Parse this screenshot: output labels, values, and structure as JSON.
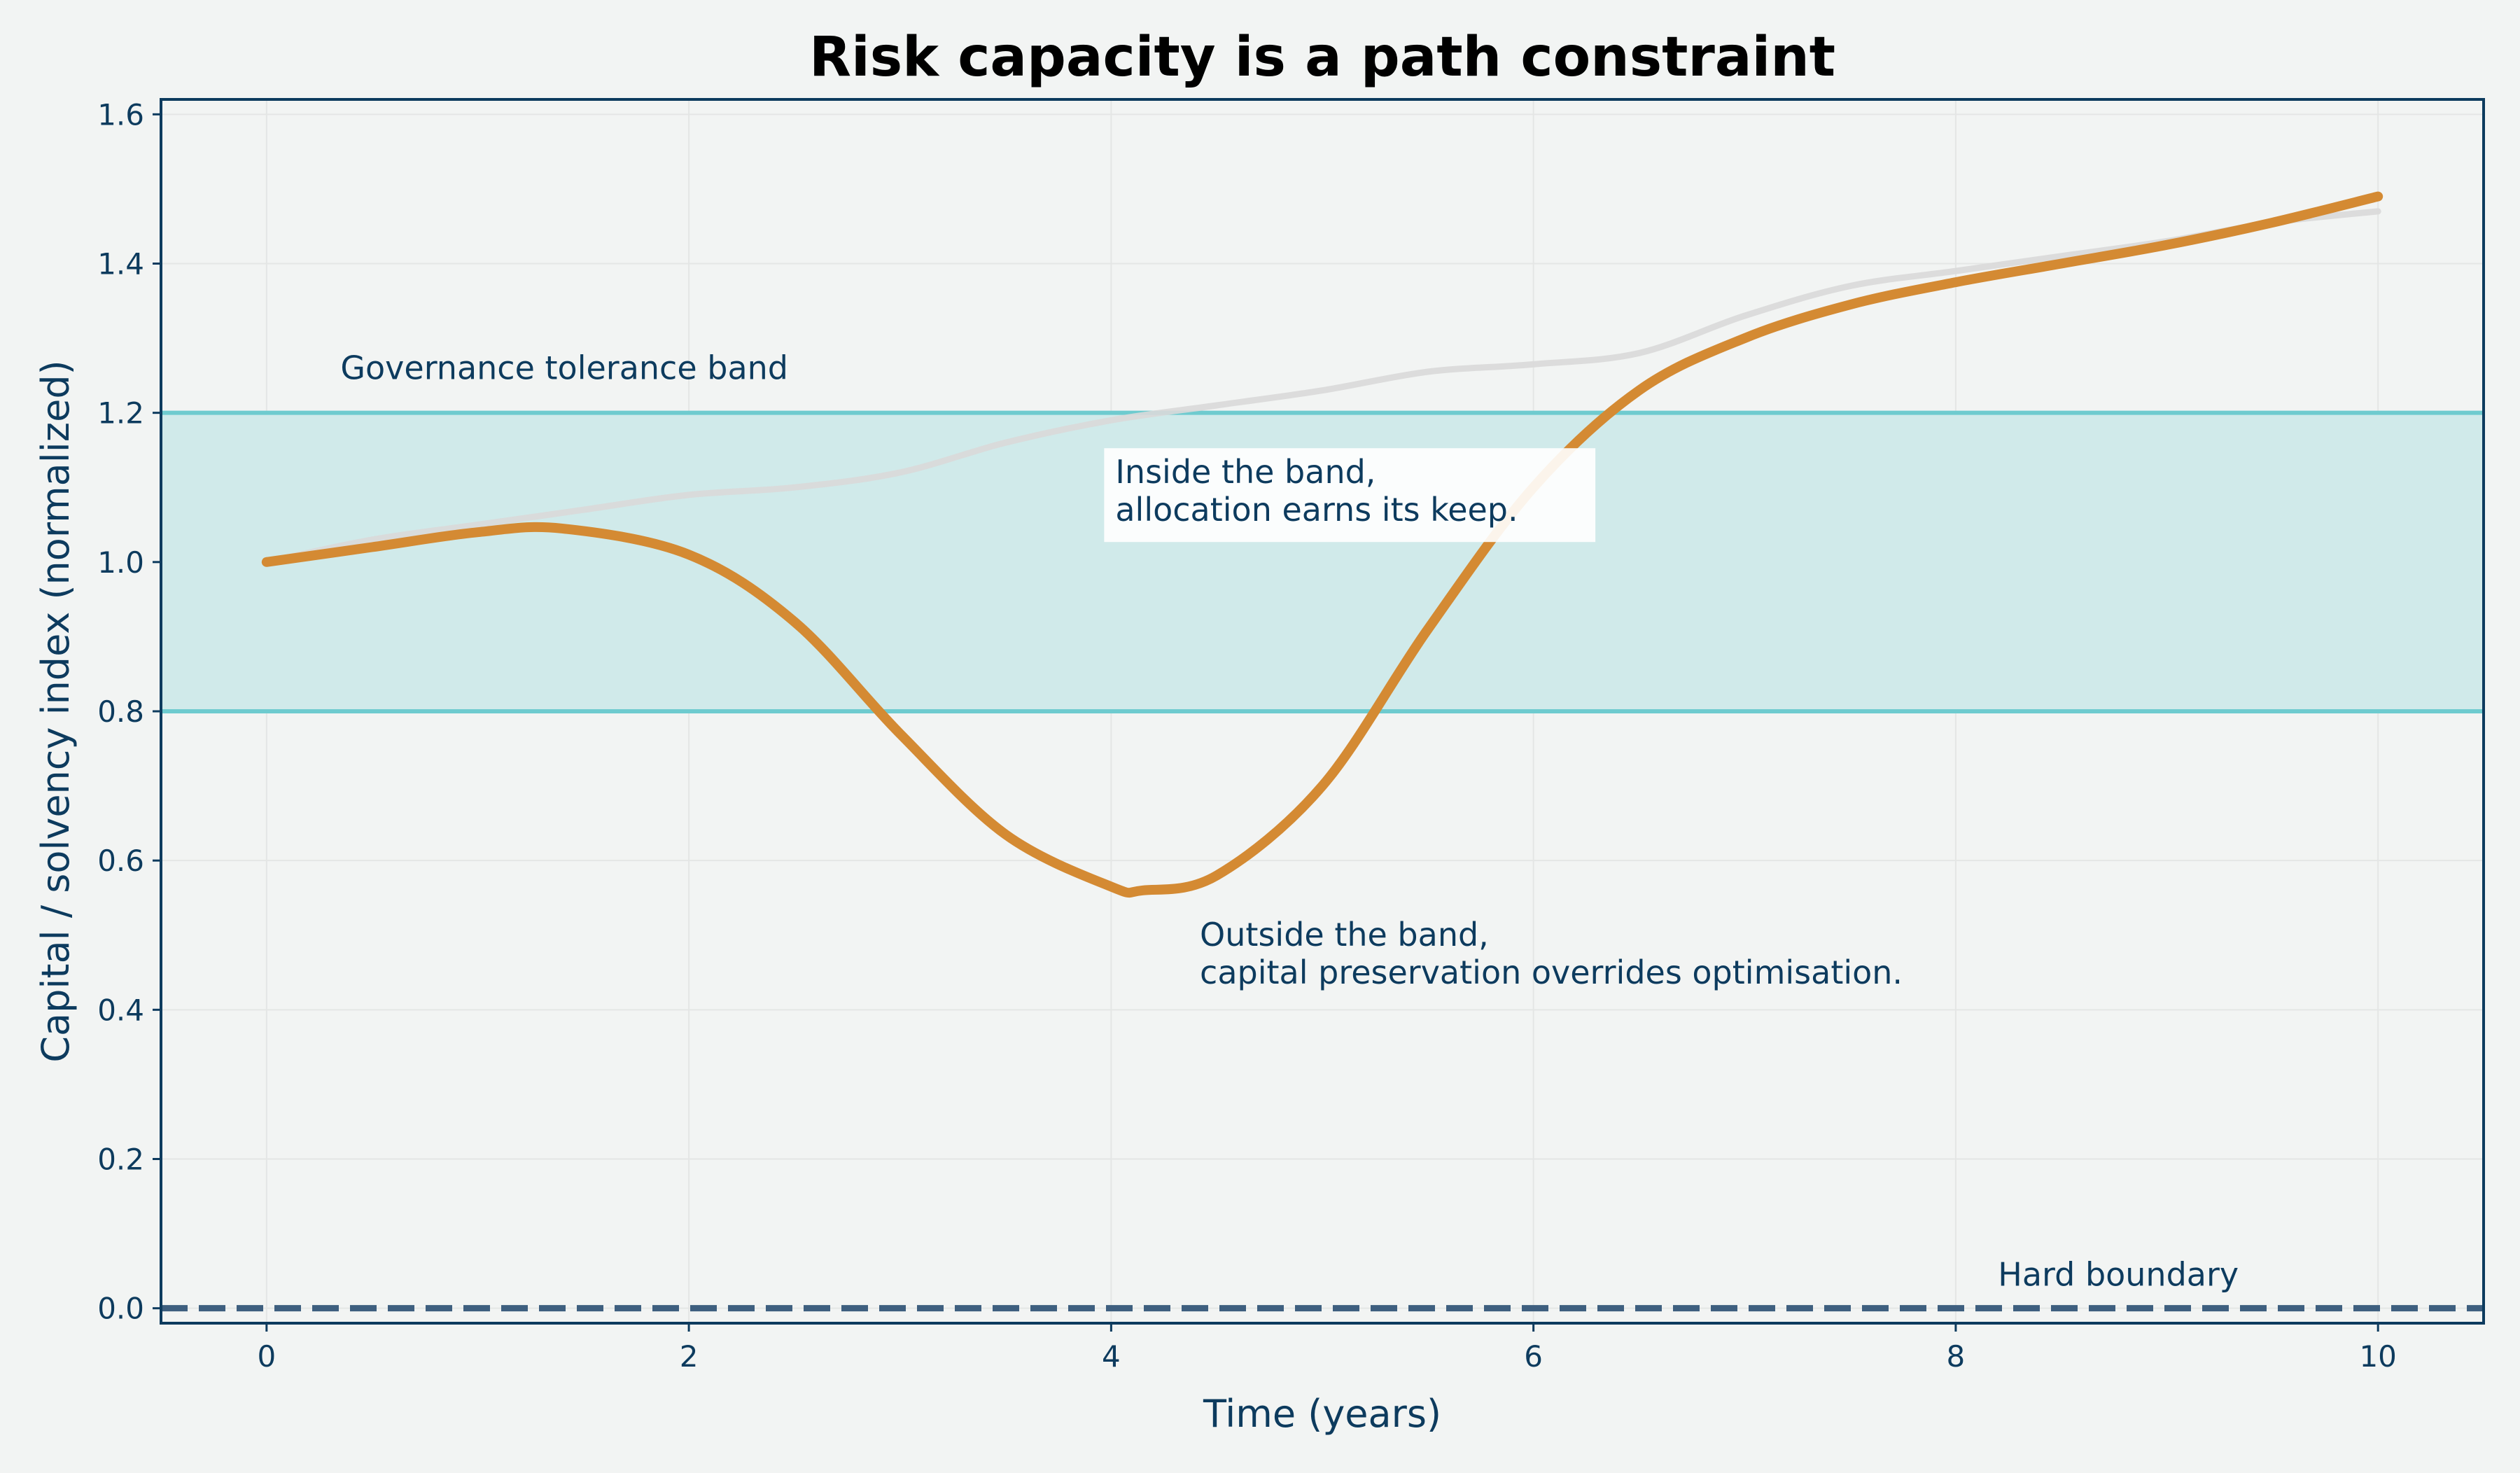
{
  "chart_data": {
    "type": "line",
    "title": "Risk capacity is a path constraint",
    "xlabel": "Time (years)",
    "ylabel": "Capital / solvency index (normalized)",
    "xlim": [
      -0.5,
      10.5
    ],
    "ylim": [
      -0.02,
      1.62
    ],
    "x_ticks": [
      0,
      2,
      4,
      6,
      8,
      10
    ],
    "x_tick_labels": [
      "0",
      "2",
      "4",
      "6",
      "8",
      "10"
    ],
    "y_ticks": [
      0.0,
      0.2,
      0.4,
      0.6,
      0.8,
      1.0,
      1.2,
      1.4,
      1.6
    ],
    "y_tick_labels": [
      "0.0",
      "0.2",
      "0.4",
      "0.6",
      "0.8",
      "1.0",
      "1.2",
      "1.4",
      "1.6"
    ],
    "grid": true,
    "band": {
      "lower": 0.8,
      "upper": 1.2,
      "label": "Governance tolerance band"
    },
    "hard_boundary": {
      "value": 0.0,
      "label": "Hard boundary"
    },
    "series": [
      {
        "role": "reference",
        "color": "#d9d9d9",
        "x": [
          0,
          0.5,
          1,
          1.5,
          2,
          2.5,
          3,
          3.5,
          4,
          4.5,
          5,
          5.5,
          6,
          6.5,
          7,
          7.5,
          8,
          8.5,
          9,
          9.5,
          10
        ],
        "y": [
          1.0,
          1.03,
          1.05,
          1.07,
          1.09,
          1.1,
          1.12,
          1.16,
          1.19,
          1.21,
          1.23,
          1.255,
          1.265,
          1.28,
          1.33,
          1.37,
          1.39,
          1.41,
          1.43,
          1.455,
          1.47
        ]
      },
      {
        "role": "path",
        "color": "#d48a33",
        "x": [
          0,
          0.5,
          1,
          1.4,
          2,
          2.5,
          3,
          3.5,
          4,
          4.15,
          4.5,
          5,
          5.5,
          6,
          6.5,
          7,
          7.5,
          8,
          8.5,
          9,
          9.5,
          10
        ],
        "y": [
          1.0,
          1.02,
          1.04,
          1.045,
          1.01,
          0.92,
          0.77,
          0.635,
          0.565,
          0.56,
          0.58,
          0.7,
          0.91,
          1.1,
          1.23,
          1.3,
          1.345,
          1.375,
          1.4,
          1.425,
          1.455,
          1.49
        ]
      }
    ],
    "annotations": [
      {
        "text_lines": [
          "Inside the band,",
          "allocation earns its keep."
        ],
        "x": 4.0,
        "y": 1.055,
        "boxed": true
      },
      {
        "text_lines": [
          "Outside the band,",
          "capital preservation overrides optimisation."
        ],
        "x": 4.42,
        "y": 0.435,
        "boxed": false
      },
      {
        "text_lines": [
          "Governance tolerance band"
        ],
        "x": 0.35,
        "y": 1.245,
        "boxed": false
      },
      {
        "text_lines": [
          "Hard boundary"
        ],
        "x": 8.2,
        "y": 0.03,
        "boxed": false
      }
    ],
    "colors": {
      "background": "#f2f4f3",
      "text": "#0d3b5e",
      "band_fill": "#d0eaea",
      "band_line": "#6ecbcf",
      "boundary": "#3e5f7f",
      "grid": "#e4e6e5",
      "axis": "#0d3b5e"
    }
  }
}
